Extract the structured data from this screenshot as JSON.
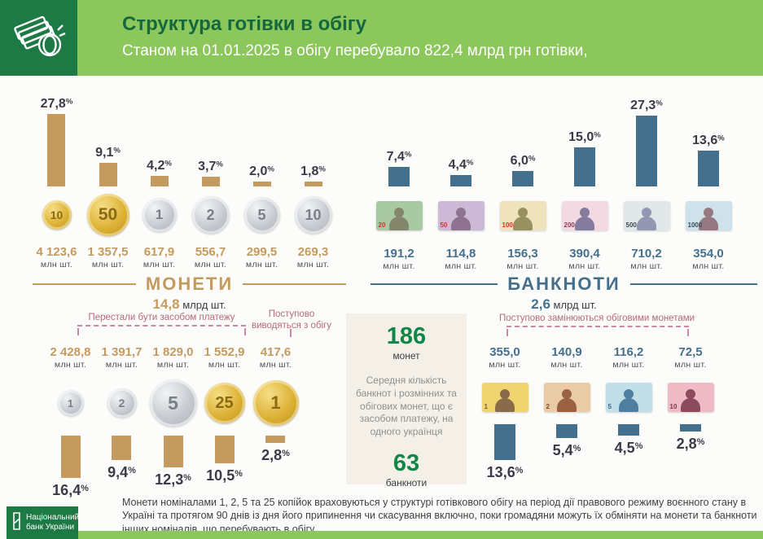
{
  "header": {
    "title": "Структура готівки в обігу",
    "subtitle": "Станом на 01.01.2025 в обігу перебувало 822,4 млрд грн готівки,"
  },
  "colors": {
    "dark_green": "#1d7a45",
    "light_green": "#8cc75c",
    "coin_accent": "#c49a5f",
    "banknote_accent": "#44708e",
    "annotation_pink": "#b5687d",
    "info_number_green": "#0e8747"
  },
  "sections": {
    "coins": {
      "title": "МОНЕТИ",
      "total": "14,8",
      "total_unit": " млрд шт."
    },
    "banknotes": {
      "title": "БАНКНОТИ",
      "total": "2,6",
      "total_unit": " млрд шт."
    }
  },
  "annotations": {
    "left": "Перестали бути засобом платежу",
    "middle": "Поступово виводяться з обігу",
    "right": "Поступово замінюються обіговими монетами"
  },
  "info_box": {
    "coins_count": "186",
    "coins_label": "монет",
    "text": "Середня кількість банкнот і розмінних та обігових монет, що є засобом платежу, на одного українця",
    "notes_count": "63",
    "notes_label": "банкноти"
  },
  "footer": {
    "note": "Монети номіналами 1, 2, 5 та 25 копійок враховуються у структурі готівкового обігу на період дії правового режиму воєнного стану в Україні та протягом 90 днів із дня його припинення чи скасування включно, поки громадяни можуть їх обміняти на  монети та  банкноти інших номіналів, що перебувають  в  обігу",
    "logo_line1": "Національний",
    "logo_line2": "банк України"
  },
  "chart_data": [
    {
      "id": "coins_top",
      "type": "bar",
      "orientation": "up",
      "value_unit": "%",
      "items": [
        {
          "label": "10 коп",
          "den": "10",
          "kind": "coin",
          "metal": "gold",
          "size": 36,
          "percent": 27.8,
          "percent_text": "27,8",
          "count_text": "4 123,6",
          "count_unit": "млн шт."
        },
        {
          "label": "50 коп",
          "den": "50",
          "kind": "coin",
          "metal": "gold",
          "size": 52,
          "percent": 9.1,
          "percent_text": "9,1",
          "count_text": "1 357,5",
          "count_unit": "млн шт."
        },
        {
          "label": "1 грн",
          "den": "1",
          "kind": "coin",
          "metal": "silver",
          "size": 42,
          "percent": 4.2,
          "percent_text": "4,2",
          "count_text": "617,9",
          "count_unit": "млн шт."
        },
        {
          "label": "2 грн",
          "den": "2",
          "kind": "coin",
          "metal": "silver",
          "size": 46,
          "percent": 3.7,
          "percent_text": "3,7",
          "count_text": "556,7",
          "count_unit": "млн шт."
        },
        {
          "label": "5 грн",
          "den": "5",
          "kind": "coin",
          "metal": "silver",
          "size": 44,
          "percent": 2.0,
          "percent_text": "2,0",
          "count_text": "299,5",
          "count_unit": "млн шт."
        },
        {
          "label": "10 грн",
          "den": "10",
          "kind": "coin",
          "metal": "silver",
          "size": 46,
          "percent": 1.8,
          "percent_text": "1,8",
          "count_text": "269,3",
          "count_unit": "млн шт."
        }
      ]
    },
    {
      "id": "banknotes_top",
      "type": "bar",
      "orientation": "up",
      "value_unit": "%",
      "items": [
        {
          "label": "20 грн",
          "den": "20",
          "kind": "note",
          "colors": {
            "bg": "#a9c9a4",
            "silhouette": "#83866b",
            "label": "#c0392b"
          },
          "percent": 7.4,
          "percent_text": "7,4",
          "count_text": "191,2",
          "count_unit": "млн шт."
        },
        {
          "label": "50 грн",
          "den": "50",
          "kind": "note",
          "colors": {
            "bg": "#cbb9d6",
            "silhouette": "#8e7390",
            "label": "#c0392b"
          },
          "percent": 4.4,
          "percent_text": "4,4",
          "count_text": "114,8",
          "count_unit": "млн шт."
        },
        {
          "label": "100 грн",
          "den": "100",
          "kind": "note",
          "colors": {
            "bg": "#efe3bd",
            "silhouette": "#97905f",
            "label": "#c0392b"
          },
          "percent": 6.0,
          "percent_text": "6,0",
          "count_text": "156,3",
          "count_unit": "млн шт."
        },
        {
          "label": "200 грн",
          "den": "200",
          "kind": "note",
          "colors": {
            "bg": "#f2d9e2",
            "silhouette": "#837c9e",
            "label": "#8e3b55"
          },
          "percent": 15.0,
          "percent_text": "15,0",
          "count_text": "390,4",
          "count_unit": "млн шт."
        },
        {
          "label": "500 грн",
          "den": "500",
          "kind": "note",
          "colors": {
            "bg": "#e2e8e9",
            "silhouette": "#9397b1",
            "label": "#3c4a56"
          },
          "percent": 27.3,
          "percent_text": "27,3",
          "count_text": "710,2",
          "count_unit": "млн шт."
        },
        {
          "label": "1000 грн",
          "den": "1000",
          "kind": "note",
          "colors": {
            "bg": "#cfe1eb",
            "silhouette": "#967883",
            "label": "#3c4a56"
          },
          "percent": 13.6,
          "percent_text": "13,6",
          "count_text": "354,0",
          "count_unit": "млн шт."
        }
      ]
    },
    {
      "id": "coins_bottom",
      "type": "bar",
      "orientation": "down",
      "value_unit": "%",
      "items": [
        {
          "label": "1 коп",
          "den": "1",
          "kind": "coin",
          "metal": "silver",
          "size": 32,
          "percent": 16.4,
          "percent_text": "16,4",
          "count_text": "2 428,8",
          "count_unit": "млн шт."
        },
        {
          "label": "2 коп",
          "den": "2",
          "kind": "coin",
          "metal": "silver",
          "size": 36,
          "percent": 9.4,
          "percent_text": "9,4",
          "count_text": "1 391,7",
          "count_unit": "млн шт."
        },
        {
          "label": "5 коп",
          "den": "5",
          "kind": "coin",
          "metal": "silver",
          "size": 58,
          "percent": 12.3,
          "percent_text": "12,3",
          "count_text": "1 829,0",
          "count_unit": "млн шт."
        },
        {
          "label": "25 коп",
          "den": "25",
          "kind": "coin",
          "metal": "gold",
          "size": 50,
          "percent": 10.5,
          "percent_text": "10,5",
          "count_text": "1 552,9",
          "count_unit": "млн шт."
        },
        {
          "label": "1 грн",
          "den": "1",
          "kind": "coin",
          "metal": "gold",
          "size": 56,
          "percent": 2.8,
          "percent_text": "2,8",
          "count_text": "417,6",
          "count_unit": "млн шт."
        }
      ]
    },
    {
      "id": "banknotes_bottom",
      "type": "bar",
      "orientation": "down",
      "value_unit": "%",
      "items": [
        {
          "label": "1 грн",
          "den": "1",
          "kind": "note",
          "colors": {
            "bg": "#f0d470",
            "silhouette": "#8a6b49",
            "label": "#7a5a32"
          },
          "percent": 13.6,
          "percent_text": "13,6",
          "count_text": "355,0",
          "count_unit": "млн шт."
        },
        {
          "label": "2 грн",
          "den": "2",
          "kind": "note",
          "colors": {
            "bg": "#e9cba6",
            "silhouette": "#9a6243",
            "label": "#7a4a28"
          },
          "percent": 5.4,
          "percent_text": "5,4",
          "count_text": "140,9",
          "count_unit": "млн шт."
        },
        {
          "label": "5 грн",
          "den": "5",
          "kind": "note",
          "colors": {
            "bg": "#c2dfe9",
            "silhouette": "#4f7fa0",
            "label": "#3a6684"
          },
          "percent": 4.5,
          "percent_text": "4,5",
          "count_text": "116,2",
          "count_unit": "млн шт."
        },
        {
          "label": "10 грн",
          "den": "10",
          "kind": "note",
          "colors": {
            "bg": "#eebac5",
            "silhouette": "#8c4a5c",
            "label": "#7c3648"
          },
          "percent": 2.8,
          "percent_text": "2,8",
          "count_text": "72,5",
          "count_unit": "млн шт."
        }
      ]
    }
  ]
}
